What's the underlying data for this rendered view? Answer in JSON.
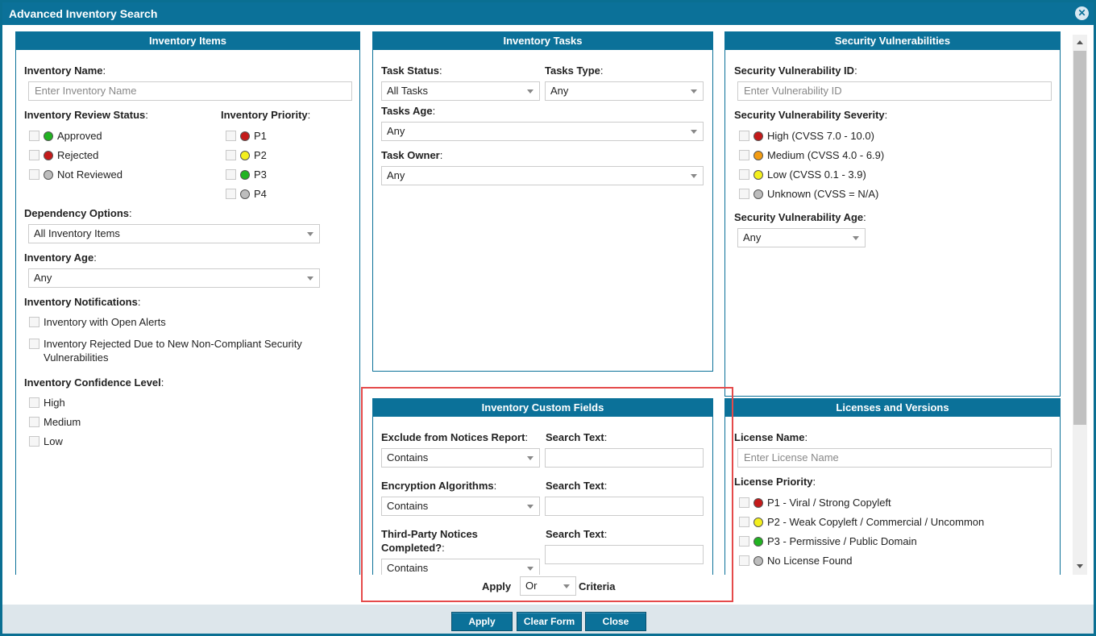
{
  "window": {
    "title": "Advanced Inventory Search"
  },
  "inventory_items": {
    "header": "Inventory Items",
    "name_label": "Inventory Name",
    "name_placeholder": "Enter Inventory Name",
    "review_status_label": "Inventory Review Status",
    "review_status": [
      {
        "label": "Approved",
        "color": "#22b322"
      },
      {
        "label": "Rejected",
        "color": "#c41a1a"
      },
      {
        "label": "Not Reviewed",
        "color": "#bdbdbd"
      }
    ],
    "priority_label": "Inventory Priority",
    "priorities": [
      {
        "label": "P1",
        "color": "#c41a1a"
      },
      {
        "label": "P2",
        "color": "#f3ef1e"
      },
      {
        "label": "P3",
        "color": "#22b322"
      },
      {
        "label": "P4",
        "color": "#bdbdbd"
      }
    ],
    "dependency_label": "Dependency Options",
    "dependency_value": "All Inventory Items",
    "age_label": "Inventory Age",
    "age_value": "Any",
    "notifications_label": "Inventory Notifications",
    "notifications": [
      "Inventory with Open Alerts",
      "Inventory Rejected Due to New Non-Compliant Security Vulnerabilities"
    ],
    "confidence_label": "Inventory Confidence Level",
    "confidence": [
      "High",
      "Medium",
      "Low"
    ]
  },
  "inventory_tasks": {
    "header": "Inventory Tasks",
    "status_label": "Task Status",
    "status_value": "All Tasks",
    "type_label": "Tasks Type",
    "type_value": "Any",
    "age_label": "Tasks Age",
    "age_value": "Any",
    "owner_label": "Task Owner",
    "owner_value": "Any"
  },
  "security_vulnerabilities": {
    "header": "Security Vulnerabilities",
    "id_label": "Security Vulnerability ID",
    "id_placeholder": "Enter Vulnerability ID",
    "severity_label": "Security Vulnerability Severity",
    "severities": [
      {
        "label": "High (CVSS 7.0 - 10.0)",
        "color": "#c41a1a"
      },
      {
        "label": "Medium (CVSS 4.0 - 6.9)",
        "color": "#f39c12"
      },
      {
        "label": "Low (CVSS 0.1 - 3.9)",
        "color": "#f3ef1e"
      },
      {
        "label": "Unknown (CVSS = N/A)",
        "color": "#bdbdbd"
      }
    ],
    "age_label": "Security Vulnerability Age",
    "age_value": "Any"
  },
  "custom_fields": {
    "header": "Inventory Custom Fields",
    "search_text_label": "Search Text",
    "fields": [
      {
        "label": "Exclude from Notices Report",
        "operator": "Contains"
      },
      {
        "label": "Encryption Algorithms",
        "operator": "Contains"
      },
      {
        "label_line1": "Third-Party Notices",
        "label_line2": "Completed?",
        "operator": "Contains"
      }
    ]
  },
  "licenses": {
    "header": "Licenses and Versions",
    "name_label": "License Name",
    "name_placeholder": "Enter License Name",
    "priority_label": "License Priority",
    "priorities": [
      {
        "label": "P1 - Viral / Strong Copyleft",
        "color": "#c41a1a"
      },
      {
        "label": "P2 - Weak Copyleft / Commercial / Uncommon",
        "color": "#f3ef1e"
      },
      {
        "label": "P3 - Permissive / Public Domain",
        "color": "#22b322"
      },
      {
        "label": "No License Found",
        "color": "#bdbdbd"
      }
    ]
  },
  "criteria": {
    "apply_label": "Apply",
    "operator": "Or",
    "criteria_label": "Criteria"
  },
  "footer": {
    "apply": "Apply",
    "clear": "Clear Form",
    "close": "Close"
  },
  "icons": {
    "close": "close-circle-icon",
    "dropdown": "chevron-down-icon"
  }
}
